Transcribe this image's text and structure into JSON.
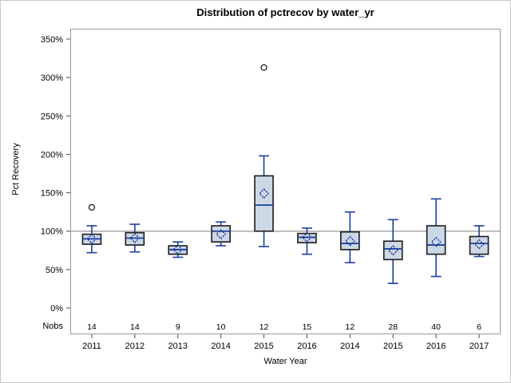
{
  "window": {
    "background": "#ffffff",
    "border_color": "#c9c9c9"
  },
  "chart_data": {
    "type": "boxplot",
    "title": "Distribution of pctrecov by water_yr",
    "xlabel": "Water Year",
    "ylabel": "Pct Recovery",
    "nobs_label": "Nobs",
    "y_ticks": [
      0,
      50,
      100,
      150,
      200,
      250,
      300,
      350
    ],
    "y_tick_suffix": "%",
    "ylim": [
      0,
      363
    ],
    "reference_line": 100,
    "grid": "off",
    "categories": [
      "2011",
      "2012",
      "2013",
      "2014",
      "2015",
      "2016",
      "2014",
      "2015",
      "2016",
      "2017"
    ],
    "nobs": [
      14,
      14,
      9,
      10,
      12,
      15,
      12,
      28,
      40,
      6
    ],
    "series": [
      {
        "year": "2011",
        "nobs": 14,
        "low": 72,
        "q1": 83,
        "median": 90,
        "q3": 96,
        "high": 107,
        "mean": 90,
        "outliers": [
          131
        ]
      },
      {
        "year": "2012",
        "nobs": 14,
        "low": 73,
        "q1": 82,
        "median": 91,
        "q3": 98,
        "high": 109,
        "mean": 91,
        "outliers": []
      },
      {
        "year": "2013",
        "nobs": 9,
        "low": 66,
        "q1": 70,
        "median": 76,
        "q3": 81,
        "high": 86,
        "mean": 76,
        "outliers": []
      },
      {
        "year": "2014",
        "nobs": 10,
        "low": 81,
        "q1": 86,
        "median": 100,
        "q3": 107,
        "high": 112,
        "mean": 96,
        "outliers": []
      },
      {
        "year": "2015",
        "nobs": 12,
        "low": 80,
        "q1": 100,
        "median": 134,
        "q3": 172,
        "high": 198,
        "mean": 149,
        "outliers": [
          313
        ]
      },
      {
        "year": "2016",
        "nobs": 15,
        "low": 70,
        "q1": 85,
        "median": 92,
        "q3": 97,
        "high": 104,
        "mean": 92,
        "outliers": []
      },
      {
        "year": "2014",
        "nobs": 12,
        "low": 59,
        "q1": 76,
        "median": 84,
        "q3": 99,
        "high": 125,
        "mean": 87,
        "outliers": []
      },
      {
        "year": "2015",
        "nobs": 28,
        "low": 32,
        "q1": 63,
        "median": 77,
        "q3": 87,
        "high": 115,
        "mean": 75,
        "outliers": []
      },
      {
        "year": "2016",
        "nobs": 40,
        "low": 41,
        "q1": 70,
        "median": 82,
        "q3": 107,
        "high": 142,
        "mean": 86,
        "outliers": []
      },
      {
        "year": "2017",
        "nobs": 6,
        "low": 67,
        "q1": 70,
        "median": 84,
        "q3": 93,
        "high": 107,
        "mean": 83,
        "outliers": []
      }
    ],
    "colors": {
      "box_fill": "#cdd8e7",
      "box_border": "#1a1a1a",
      "line_blue": "#1d3f9c",
      "reference_line": "#a8a8a8",
      "frame": "#999999",
      "tick": "#4d4d4d",
      "outlier_fill": "#ffffff"
    }
  }
}
